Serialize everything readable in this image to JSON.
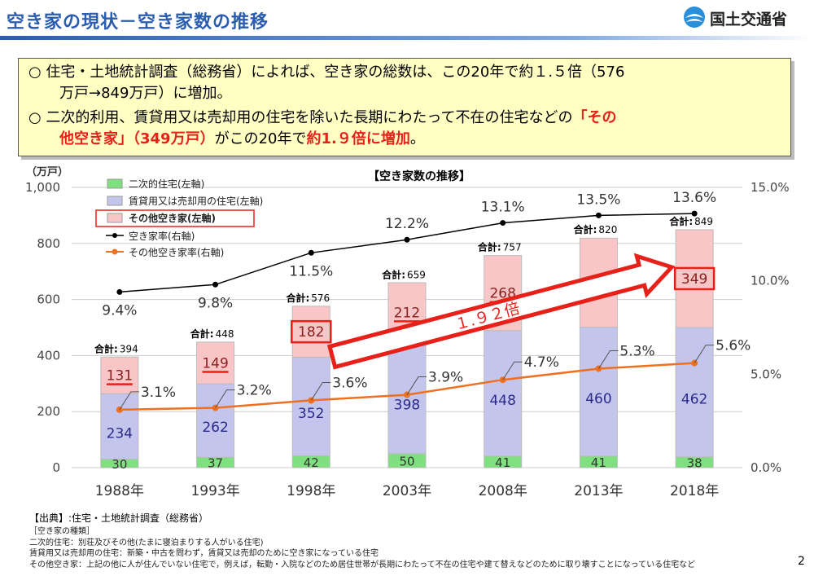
{
  "header": {
    "title": "空き家の現状－空き家数の推移",
    "logo_text": "国土交通省"
  },
  "summary": {
    "line1": "○ 住宅・土地統計調査（総務省）によれば、空き家の総数は、この20年で約１.５倍（576",
    "line2": "万戸→849万戸）に増加。",
    "line3": "○ 二次的利用、賃貸用又は売却用の住宅を除いた長期にわたって不在の住宅などの",
    "line3_red": "「その",
    "line4_red1": "他空き家」（349万戸）",
    "line4_mid": "がこの20年で",
    "line4_red2": "約1.９倍に増加",
    "line4_end": "。"
  },
  "chart_data": {
    "type": "bar",
    "title": "【空き家数の推移】",
    "left_unit": "（万戸）",
    "categories": [
      "1988年",
      "1993年",
      "1998年",
      "2003年",
      "2008年",
      "2013年",
      "2018年"
    ],
    "series": [
      {
        "name": "二次的住宅(左軸)",
        "values": [
          30,
          37,
          42,
          50,
          41,
          41,
          38
        ],
        "color": "#7ee07e",
        "type": "bar"
      },
      {
        "name": "賃貸用又は売却用の住宅(左軸)",
        "values": [
          234,
          262,
          352,
          398,
          448,
          460,
          462
        ],
        "color": "#c3c5ec",
        "type": "bar"
      },
      {
        "name": "その他空き家(左軸)",
        "values": [
          131,
          149,
          182,
          212,
          268,
          318,
          349
        ],
        "color": "#f8c6c6",
        "type": "bar"
      },
      {
        "name": "空き家率(右軸)",
        "values": [
          9.4,
          9.8,
          11.5,
          12.2,
          13.1,
          13.5,
          13.6
        ],
        "color": "#000000",
        "type": "line"
      },
      {
        "name": "その他空き家率(右軸)",
        "values": [
          3.1,
          3.2,
          3.6,
          3.9,
          4.7,
          5.3,
          5.6
        ],
        "color": "#ee7020",
        "type": "line"
      }
    ],
    "total_label": "合計",
    "totals": [
      394,
      448,
      576,
      659,
      757,
      820,
      849
    ],
    "total_labels": [
      "394",
      "448",
      "576",
      "659",
      "757",
      "820",
      "849"
    ],
    "rate_labels": [
      "9.4%",
      "9.8%",
      "11.5%",
      "12.2%",
      "13.1%",
      "13.5%",
      "13.6%"
    ],
    "other_rate_labels": [
      "3.1%",
      "3.2%",
      "3.6%",
      "3.9%",
      "4.7%",
      "5.3%",
      "5.6%"
    ],
    "left_ticks": [
      "0",
      "200",
      "400",
      "600",
      "800",
      "1,000"
    ],
    "right_ticks": [
      "0.0%",
      "5.0%",
      "10.0%",
      "15.0%"
    ],
    "ylim_left": [
      0,
      1000
    ],
    "ylim_right": [
      0,
      15
    ],
    "arrow_label": "１.９２倍",
    "grid": true
  },
  "footer": {
    "source": "【出典】:住宅・土地統計調査（総務省）",
    "note_title": "［空き家の種類］",
    "note1": "二次的住宅：別荘及びその他(たまに寝泊まりする人がいる住宅)",
    "note2": "賃貸用又は売却用の住宅：新築・中古を問わず，賃貸又は売却のために空き家になっている住宅",
    "note3": "その他空き家：上記の他に人が住んでいない住宅で，例えば，転勤・入院などのため居住世帯が長期にわたって不在の住宅や建て替えなどのために取り壊すことになっている住宅など",
    "page": "2"
  }
}
